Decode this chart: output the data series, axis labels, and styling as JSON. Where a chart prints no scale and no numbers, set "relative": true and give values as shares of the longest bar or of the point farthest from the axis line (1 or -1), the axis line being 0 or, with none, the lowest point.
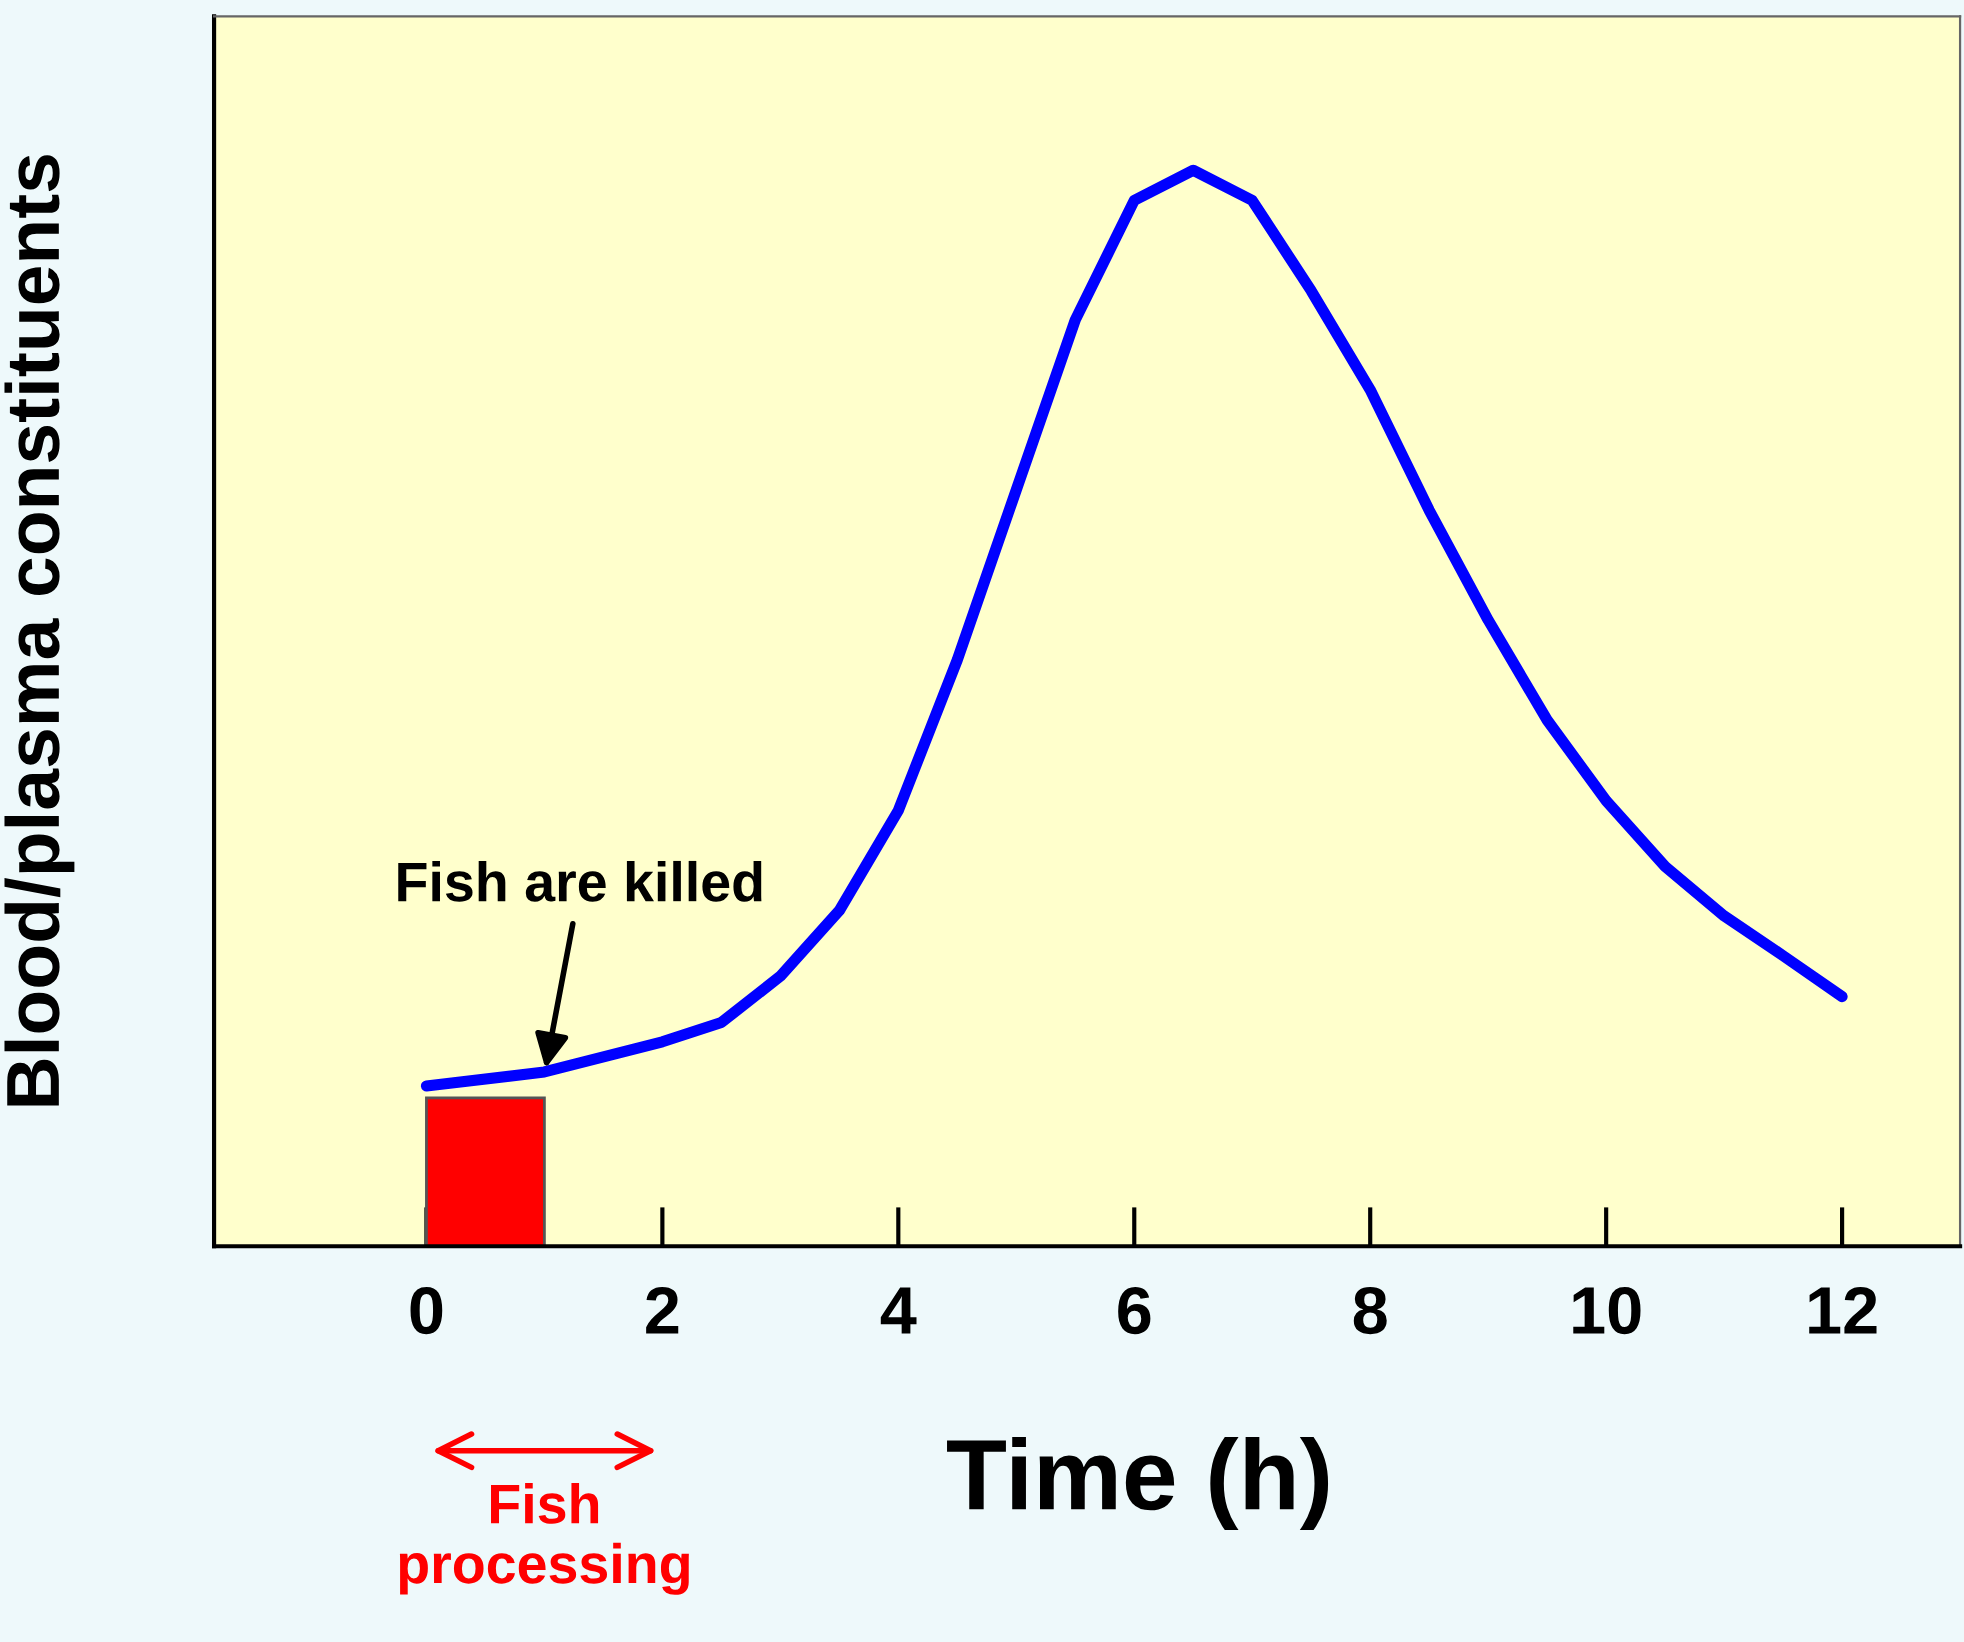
{
  "chart_data": {
    "type": "line",
    "relative": true,
    "xlabel": "Time (h)",
    "ylabel": "Blood/plasma constituents",
    "xlim": [
      -1.8,
      13
    ],
    "xticks": [
      0,
      2,
      4,
      6,
      8,
      10,
      12
    ],
    "grid": false,
    "legend": false,
    "tick_labels": "x",
    "series": [
      {
        "type": "bar",
        "color": "#ff0000",
        "x": [
          0.5
        ],
        "values": [
          0.138
        ]
      },
      {
        "color": "#0000ff",
        "x": [
          0,
          1,
          2,
          2.5,
          3,
          3.5,
          4,
          4.5,
          5,
          5.5,
          6,
          6.5,
          7,
          7.5,
          8,
          8.5,
          9,
          9.5,
          10,
          10.5,
          11,
          11.5,
          12
        ],
        "values": [
          0.149,
          0.162,
          0.19,
          0.208,
          0.251,
          0.312,
          0.405,
          0.545,
          0.703,
          0.861,
          0.972,
          1.0,
          0.972,
          0.888,
          0.796,
          0.684,
          0.582,
          0.489,
          0.414,
          0.353,
          0.307,
          0.27,
          0.232
        ]
      }
    ],
    "annotations": [
      {
        "text": "Fish are killed",
        "x": 1,
        "y": 0.16
      },
      "Fish\nprocessing"
    ]
  }
}
